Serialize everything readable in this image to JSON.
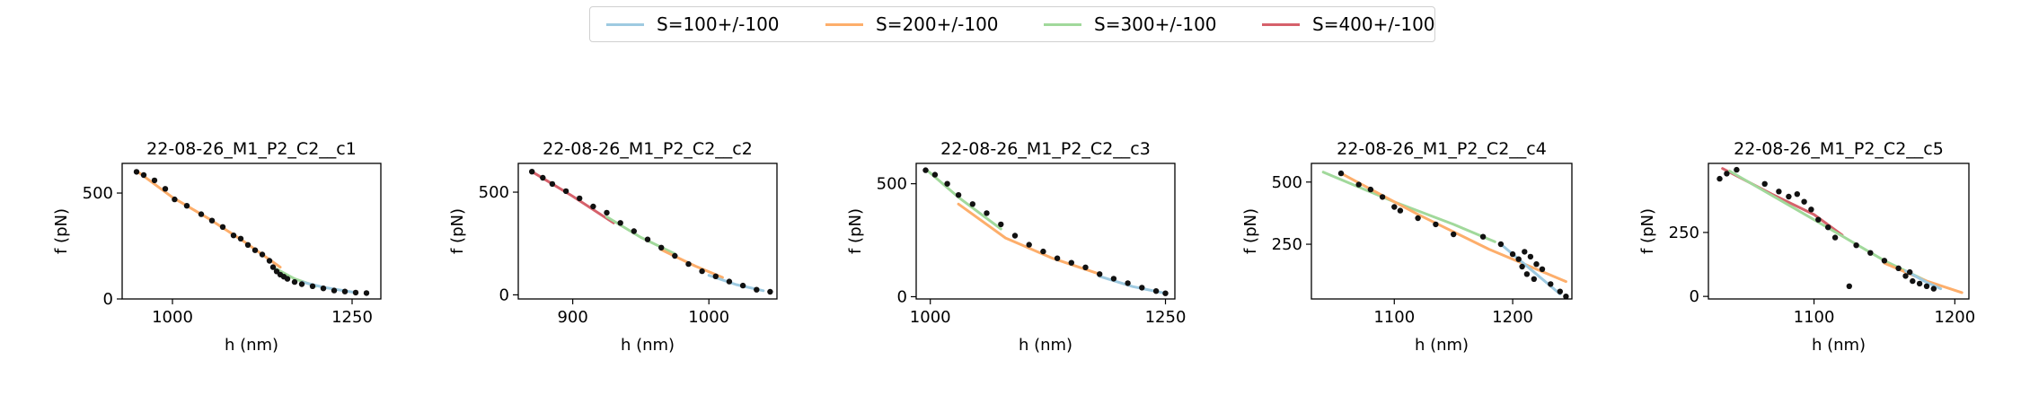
{
  "legend": {
    "items": [
      {
        "label": "S=100+/-100",
        "color": "#9ecae1"
      },
      {
        "label": "S=200+/-100",
        "color": "#fdae6b"
      },
      {
        "label": "S=300+/-100",
        "color": "#a1d99b"
      },
      {
        "label": "S=400+/-100",
        "color": "#d6616b"
      }
    ]
  },
  "chart_data": [
    {
      "type": "scatter",
      "title": "22-08-26_M1_P2_C2__c1",
      "xlabel": "h (nm)",
      "ylabel": "f (pN)",
      "xlim": [
        930,
        1290
      ],
      "ylim": [
        0,
        640
      ],
      "xticks": [
        1000,
        1250
      ],
      "yticks": [
        0,
        500
      ],
      "points": [
        [
          950,
          600
        ],
        [
          960,
          585
        ],
        [
          975,
          560
        ],
        [
          990,
          520
        ],
        [
          1003,
          470
        ],
        [
          1020,
          440
        ],
        [
          1040,
          400
        ],
        [
          1055,
          370
        ],
        [
          1070,
          340
        ],
        [
          1085,
          300
        ],
        [
          1095,
          285
        ],
        [
          1105,
          255
        ],
        [
          1115,
          230
        ],
        [
          1125,
          210
        ],
        [
          1135,
          180
        ],
        [
          1140,
          150
        ],
        [
          1145,
          130
        ],
        [
          1150,
          115
        ],
        [
          1155,
          105
        ],
        [
          1160,
          95
        ],
        [
          1170,
          80
        ],
        [
          1180,
          70
        ],
        [
          1195,
          60
        ],
        [
          1210,
          50
        ],
        [
          1225,
          40
        ],
        [
          1240,
          35
        ],
        [
          1255,
          30
        ],
        [
          1270,
          28
        ]
      ],
      "series": [
        {
          "name": "S=200+/-100",
          "x": [
            950,
            1000,
            1050,
            1100,
            1150
          ],
          "y": [
            605,
            480,
            380,
            270,
            150
          ]
        },
        {
          "name": "S=300+/-100",
          "x": [
            1140,
            1170,
            1200
          ],
          "y": [
            150,
            95,
            60
          ]
        },
        {
          "name": "S=100+/-100",
          "x": [
            1180,
            1210,
            1240,
            1255
          ],
          "y": [
            80,
            55,
            38,
            30
          ]
        }
      ]
    },
    {
      "type": "scatter",
      "title": "22-08-26_M1_P2_C2__c2",
      "xlabel": "h (nm)",
      "ylabel": "f (pN)",
      "xlim": [
        860,
        1050
      ],
      "ylim": [
        -20,
        640
      ],
      "xticks": [
        900,
        1000
      ],
      "yticks": [
        0,
        500
      ],
      "points": [
        [
          870,
          600
        ],
        [
          878,
          570
        ],
        [
          885,
          540
        ],
        [
          895,
          505
        ],
        [
          905,
          470
        ],
        [
          915,
          430
        ],
        [
          925,
          400
        ],
        [
          935,
          350
        ],
        [
          945,
          310
        ],
        [
          955,
          270
        ],
        [
          965,
          230
        ],
        [
          975,
          190
        ],
        [
          985,
          150
        ],
        [
          995,
          115
        ],
        [
          1005,
          90
        ],
        [
          1015,
          65
        ],
        [
          1025,
          45
        ],
        [
          1035,
          25
        ],
        [
          1045,
          15
        ]
      ],
      "series": [
        {
          "name": "S=400+/-100",
          "x": [
            870,
            900,
            930
          ],
          "y": [
            600,
            480,
            350
          ]
        },
        {
          "name": "S=300+/-100",
          "x": [
            925,
            950,
            975
          ],
          "y": [
            380,
            280,
            200
          ]
        },
        {
          "name": "S=200+/-100",
          "x": [
            965,
            990,
            1010
          ],
          "y": [
            220,
            140,
            85
          ]
        },
        {
          "name": "S=100+/-100",
          "x": [
            1000,
            1020,
            1040
          ],
          "y": [
            95,
            50,
            20
          ]
        }
      ]
    },
    {
      "type": "scatter",
      "title": "22-08-26_M1_P2_C2__c3",
      "xlabel": "h (nm)",
      "ylabel": "f (pN)",
      "xlim": [
        985,
        1260
      ],
      "ylim": [
        -10,
        590
      ],
      "xticks": [
        1000,
        1250
      ],
      "yticks": [
        0,
        500
      ],
      "points": [
        [
          995,
          560
        ],
        [
          1005,
          540
        ],
        [
          1018,
          500
        ],
        [
          1030,
          450
        ],
        [
          1045,
          410
        ],
        [
          1060,
          370
        ],
        [
          1075,
          320
        ],
        [
          1090,
          270
        ],
        [
          1105,
          230
        ],
        [
          1120,
          200
        ],
        [
          1135,
          170
        ],
        [
          1150,
          150
        ],
        [
          1165,
          130
        ],
        [
          1180,
          100
        ],
        [
          1195,
          80
        ],
        [
          1210,
          60
        ],
        [
          1225,
          40
        ],
        [
          1240,
          25
        ],
        [
          1250,
          15
        ]
      ],
      "series": [
        {
          "name": "S=300+/-100",
          "x": [
            995,
            1030,
            1075
          ],
          "y": [
            565,
            440,
            300
          ]
        },
        {
          "name": "S=200+/-100",
          "x": [
            1030,
            1080,
            1130,
            1180
          ],
          "y": [
            410,
            260,
            170,
            100
          ]
        },
        {
          "name": "S=100+/-100",
          "x": [
            1180,
            1215,
            1250
          ],
          "y": [
            90,
            45,
            15
          ]
        }
      ]
    },
    {
      "type": "scatter",
      "title": "22-08-26_M1_P2_C2__c4",
      "xlabel": "h (nm)",
      "ylabel": "f (pN)",
      "xlim": [
        1030,
        1250
      ],
      "ylim": [
        30,
        575
      ],
      "xticks": [
        1100,
        1200
      ],
      "yticks": [
        250,
        500
      ],
      "points": [
        [
          1055,
          535
        ],
        [
          1070,
          490
        ],
        [
          1080,
          470
        ],
        [
          1090,
          440
        ],
        [
          1100,
          400
        ],
        [
          1105,
          385
        ],
        [
          1120,
          355
        ],
        [
          1135,
          330
        ],
        [
          1150,
          290
        ],
        [
          1175,
          280
        ],
        [
          1190,
          250
        ],
        [
          1200,
          210
        ],
        [
          1205,
          190
        ],
        [
          1208,
          160
        ],
        [
          1210,
          220
        ],
        [
          1212,
          130
        ],
        [
          1215,
          200
        ],
        [
          1218,
          110
        ],
        [
          1220,
          170
        ],
        [
          1225,
          150
        ],
        [
          1232,
          90
        ],
        [
          1240,
          60
        ],
        [
          1245,
          40
        ]
      ],
      "series": [
        {
          "name": "S=300+/-100",
          "x": [
            1040,
            1100,
            1150,
            1185
          ],
          "y": [
            540,
            420,
            330,
            260
          ]
        },
        {
          "name": "S=200+/-100",
          "x": [
            1055,
            1120,
            1180,
            1245
          ],
          "y": [
            535,
            370,
            230,
            100
          ]
        },
        {
          "name": "S=100+/-100",
          "x": [
            1190,
            1215,
            1240
          ],
          "y": [
            250,
            150,
            50
          ]
        }
      ]
    },
    {
      "type": "scatter",
      "title": "22-08-26_M1_P2_C2__c5",
      "xlabel": "h (nm)",
      "ylabel": "f (pN)",
      "xlim": [
        1025,
        1210
      ],
      "ylim": [
        -10,
        520
      ],
      "xticks": [
        1100,
        1200
      ],
      "yticks": [
        0,
        250
      ],
      "points": [
        [
          1033,
          460
        ],
        [
          1038,
          480
        ],
        [
          1045,
          495
        ],
        [
          1065,
          440
        ],
        [
          1075,
          410
        ],
        [
          1082,
          390
        ],
        [
          1088,
          400
        ],
        [
          1093,
          370
        ],
        [
          1098,
          340
        ],
        [
          1103,
          300
        ],
        [
          1110,
          270
        ],
        [
          1115,
          230
        ],
        [
          1125,
          40
        ],
        [
          1130,
          200
        ],
        [
          1140,
          170
        ],
        [
          1150,
          140
        ],
        [
          1160,
          110
        ],
        [
          1165,
          80
        ],
        [
          1168,
          95
        ],
        [
          1170,
          60
        ],
        [
          1175,
          50
        ],
        [
          1180,
          40
        ],
        [
          1185,
          30
        ]
      ],
      "series": [
        {
          "name": "S=400+/-100",
          "x": [
            1035,
            1070,
            1100,
            1120
          ],
          "y": [
            500,
            400,
            320,
            240
          ]
        },
        {
          "name": "S=300+/-100",
          "x": [
            1040,
            1100,
            1150,
            1180
          ],
          "y": [
            490,
            300,
            140,
            60
          ]
        },
        {
          "name": "S=200+/-100",
          "x": [
            1150,
            1180,
            1205
          ],
          "y": [
            130,
            60,
            15
          ]
        },
        {
          "name": "S=100+/-100",
          "x": [
            1165,
            1180,
            1190
          ],
          "y": [
            100,
            55,
            30
          ]
        }
      ]
    }
  ]
}
